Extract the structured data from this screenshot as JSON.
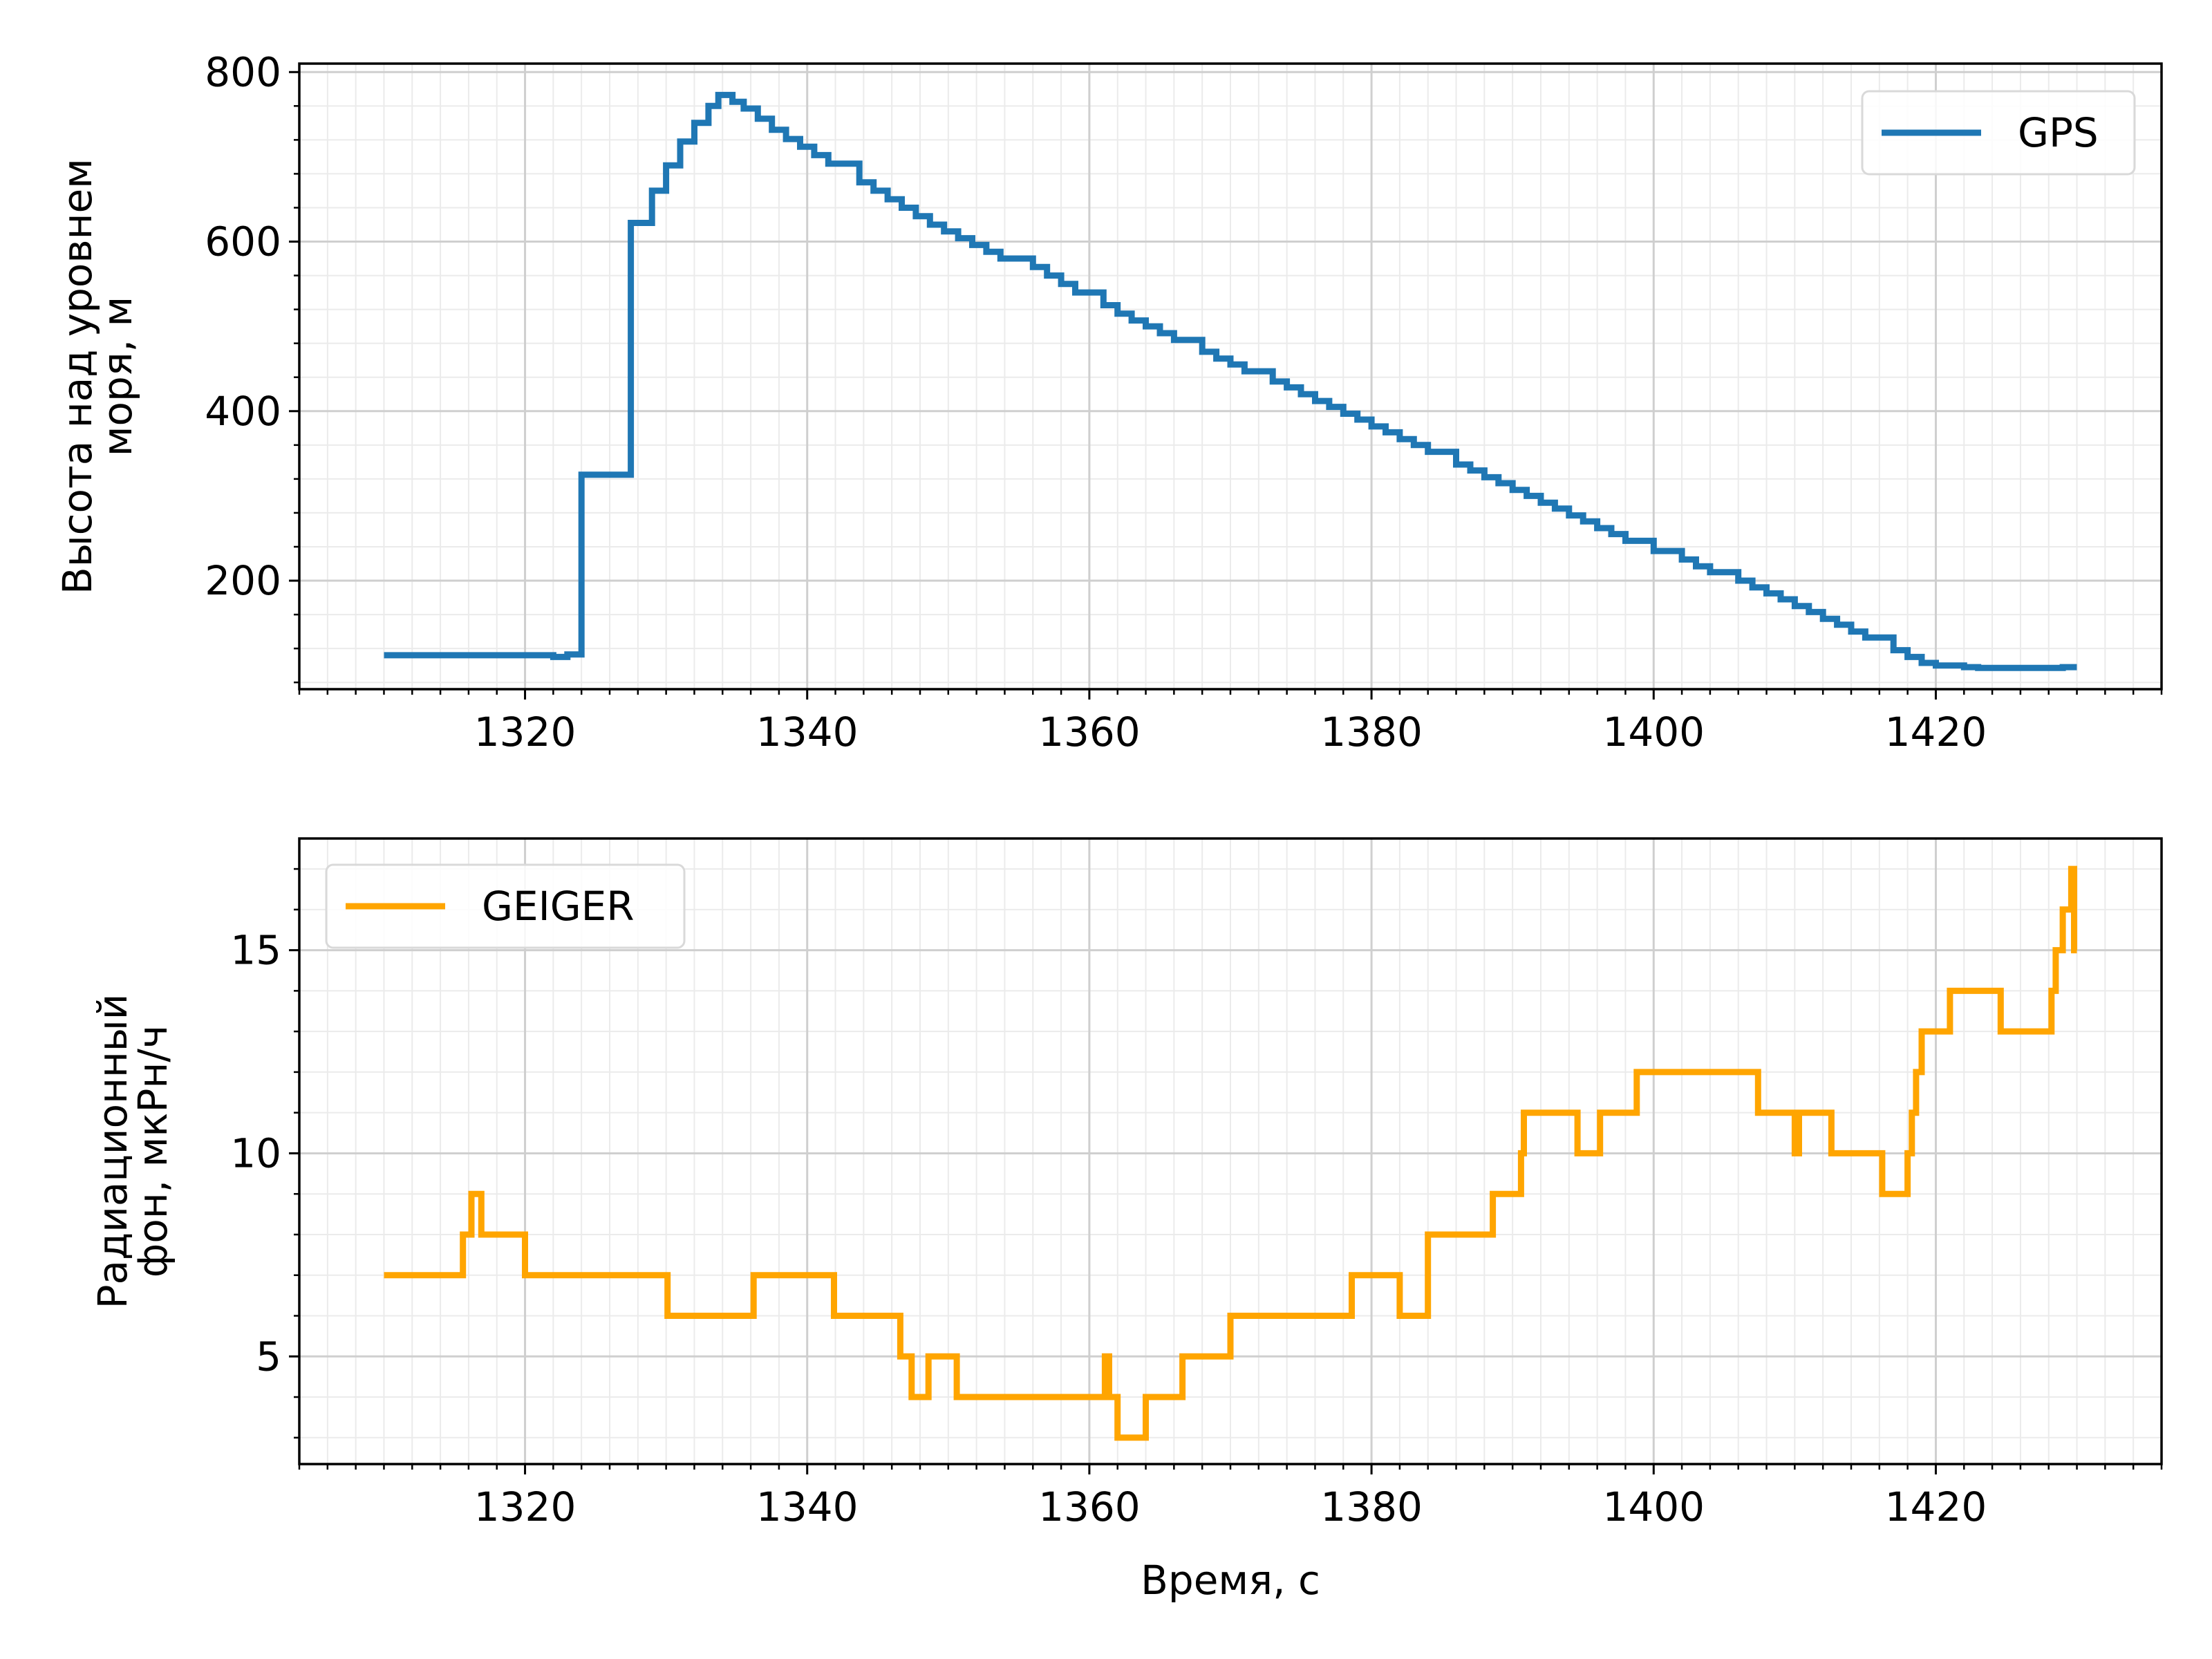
{
  "chart_data": [
    {
      "type": "line",
      "title": "",
      "xlabel": "",
      "ylabel": [
        "Высота над уровнем",
        "моря, м"
      ],
      "xlim": [
        1304,
        1436
      ],
      "ylim": [
        72,
        810
      ],
      "xticks": [
        1320,
        1340,
        1360,
        1380,
        1400,
        1420
      ],
      "xtick_labels": [
        "1320",
        "1340",
        "1360",
        "1380",
        "1400",
        "1420"
      ],
      "yticks": [
        200,
        400,
        600,
        800
      ],
      "ytick_labels": [
        "200",
        "400",
        "600",
        "800"
      ],
      "grid": true,
      "grid_minor": true,
      "legend_position": "top-right",
      "step": "post",
      "series": [
        {
          "name": "GPS",
          "color": "#1f77b4",
          "points": [
            [
              1310,
              112
            ],
            [
              1322,
              110
            ],
            [
              1323,
              113
            ],
            [
              1324,
              325
            ],
            [
              1325,
              325
            ],
            [
              1327.5,
              622
            ],
            [
              1328.5,
              622
            ],
            [
              1329,
              660
            ],
            [
              1330,
              690
            ],
            [
              1331,
              718
            ],
            [
              1332,
              740
            ],
            [
              1333,
              760
            ],
            [
              1333.7,
              773
            ],
            [
              1334.7,
              765
            ],
            [
              1335.5,
              757
            ],
            [
              1336.5,
              745
            ],
            [
              1337.5,
              732
            ],
            [
              1338.5,
              721
            ],
            [
              1339.5,
              712
            ],
            [
              1340.5,
              702
            ],
            [
              1341.5,
              692
            ],
            [
              1342.5,
              692
            ],
            [
              1343.7,
              670
            ],
            [
              1344.7,
              660
            ],
            [
              1345.7,
              650
            ],
            [
              1346.7,
              640
            ],
            [
              1347.7,
              630
            ],
            [
              1348.7,
              620
            ],
            [
              1349.7,
              612
            ],
            [
              1350.7,
              604
            ],
            [
              1351.7,
              596
            ],
            [
              1352.7,
              588
            ],
            [
              1353.7,
              580
            ],
            [
              1354.7,
              580
            ],
            [
              1356,
              570
            ],
            [
              1357,
              560
            ],
            [
              1358,
              550
            ],
            [
              1359,
              540
            ],
            [
              1360,
              540
            ],
            [
              1361,
              525
            ],
            [
              1362,
              515
            ],
            [
              1363,
              507
            ],
            [
              1364,
              500
            ],
            [
              1365,
              492
            ],
            [
              1366,
              484
            ],
            [
              1367,
              484
            ],
            [
              1368,
              470
            ],
            [
              1369,
              462
            ],
            [
              1370,
              455
            ],
            [
              1371,
              447
            ],
            [
              1372,
              447
            ],
            [
              1373,
              435
            ],
            [
              1374,
              428
            ],
            [
              1375,
              420
            ],
            [
              1376,
              412
            ],
            [
              1377,
              405
            ],
            [
              1378,
              397
            ],
            [
              1379,
              390
            ],
            [
              1380,
              382
            ],
            [
              1381,
              375
            ],
            [
              1382,
              367
            ],
            [
              1383,
              360
            ],
            [
              1384,
              352
            ],
            [
              1385,
              352
            ],
            [
              1386,
              337
            ],
            [
              1387,
              330
            ],
            [
              1388,
              322
            ],
            [
              1389,
              315
            ],
            [
              1390,
              307
            ],
            [
              1391,
              300
            ],
            [
              1392,
              292
            ],
            [
              1393,
              285
            ],
            [
              1394,
              277
            ],
            [
              1395,
              270
            ],
            [
              1396,
              262
            ],
            [
              1397,
              255
            ],
            [
              1398,
              247
            ],
            [
              1399,
              247
            ],
            [
              1400,
              235
            ],
            [
              1401,
              235
            ],
            [
              1402,
              225
            ],
            [
              1403,
              217
            ],
            [
              1404,
              210
            ],
            [
              1405,
              210
            ],
            [
              1406,
              200
            ],
            [
              1407,
              192
            ],
            [
              1408,
              185
            ],
            [
              1409,
              178
            ],
            [
              1410,
              170
            ],
            [
              1411,
              163
            ],
            [
              1412,
              155
            ],
            [
              1413,
              148
            ],
            [
              1414,
              140
            ],
            [
              1415,
              133
            ],
            [
              1416,
              133
            ],
            [
              1417,
              118
            ],
            [
              1418,
              110
            ],
            [
              1419,
              103
            ],
            [
              1420,
              100
            ],
            [
              1421,
              100
            ],
            [
              1422,
              98
            ],
            [
              1423,
              97
            ],
            [
              1425,
              97
            ],
            [
              1427,
              97
            ],
            [
              1429,
              98
            ],
            [
              1430,
              98
            ]
          ]
        }
      ]
    },
    {
      "type": "line",
      "title": "",
      "xlabel": "Время, с",
      "ylabel": [
        "Радиационный",
        "фон, мкРн/ч"
      ],
      "xlim": [
        1304,
        1436
      ],
      "ylim": [
        2.35,
        17.75
      ],
      "xticks": [
        1320,
        1340,
        1360,
        1380,
        1400,
        1420
      ],
      "xtick_labels": [
        "1320",
        "1340",
        "1360",
        "1380",
        "1400",
        "1420"
      ],
      "yticks": [
        5,
        10,
        15
      ],
      "ytick_labels": [
        "5",
        "10",
        "15"
      ],
      "grid": true,
      "grid_minor": true,
      "legend_position": "top-left",
      "step": "post",
      "series": [
        {
          "name": "GEIGER",
          "color": "#ffa500",
          "points": [
            [
              1310,
              7
            ],
            [
              1315.6,
              8
            ],
            [
              1316.2,
              9
            ],
            [
              1316.9,
              8
            ],
            [
              1320,
              7
            ],
            [
              1330.1,
              6
            ],
            [
              1336.2,
              7
            ],
            [
              1341.9,
              6
            ],
            [
              1346.6,
              5
            ],
            [
              1347.4,
              4
            ],
            [
              1348.6,
              5
            ],
            [
              1350.6,
              4
            ],
            [
              1361.1,
              5
            ],
            [
              1361.4,
              4
            ],
            [
              1362,
              3
            ],
            [
              1364,
              4
            ],
            [
              1366.6,
              5
            ],
            [
              1370,
              6
            ],
            [
              1378.6,
              7
            ],
            [
              1382,
              6
            ],
            [
              1384,
              8
            ],
            [
              1388.6,
              9
            ],
            [
              1390.6,
              10
            ],
            [
              1390.8,
              11
            ],
            [
              1394.6,
              10
            ],
            [
              1396.2,
              11
            ],
            [
              1398.8,
              12
            ],
            [
              1407.4,
              11
            ],
            [
              1410,
              10
            ],
            [
              1410.3,
              11
            ],
            [
              1412.6,
              10
            ],
            [
              1416.2,
              9
            ],
            [
              1418,
              10
            ],
            [
              1418.3,
              11
            ],
            [
              1418.6,
              12
            ],
            [
              1419,
              13
            ],
            [
              1421,
              14
            ],
            [
              1424.6,
              13
            ],
            [
              1428.2,
              14
            ],
            [
              1428.5,
              15
            ],
            [
              1429,
              16
            ],
            [
              1429.6,
              17
            ],
            [
              1429.8,
              15
            ],
            [
              1430,
              15
            ]
          ]
        }
      ]
    }
  ]
}
